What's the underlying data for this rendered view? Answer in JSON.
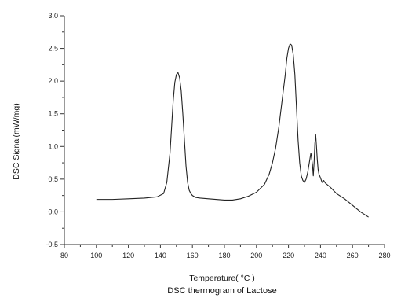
{
  "chart_data": {
    "type": "line",
    "title": "DSC thermogram of Lactose",
    "xlabel": "Temperature( °C )",
    "ylabel": "DSC Signal(mW/mg)",
    "xlim": [
      80,
      280
    ],
    "ylim": [
      -0.5,
      3.0
    ],
    "x_ticks": [
      80,
      100,
      120,
      140,
      160,
      180,
      200,
      220,
      240,
      260,
      280
    ],
    "y_ticks": [
      -0.5,
      0.0,
      0.5,
      1.0,
      1.5,
      2.0,
      2.5,
      3.0
    ],
    "x_tick_labels": [
      "80",
      "100",
      "120",
      "140",
      "160",
      "180",
      "200",
      "220",
      "240",
      "260",
      "280"
    ],
    "y_tick_labels": [
      "-0.5",
      "0.0",
      "0.5",
      "1.0",
      "1.5",
      "2.0",
      "2.5",
      "3.0"
    ],
    "grid": false,
    "line_color": "#222222",
    "series": [
      {
        "x": [
          100,
          110,
          120,
          130,
          138,
          142,
          144,
          146,
          147,
          148,
          149,
          150,
          151,
          152,
          153,
          154,
          155,
          156,
          157,
          158,
          159,
          160,
          162,
          165,
          170,
          180,
          185,
          190,
          195,
          200,
          205,
          208,
          210,
          212,
          214,
          216,
          218,
          219,
          220,
          221,
          222,
          223,
          224,
          225,
          226,
          227,
          228,
          229,
          230,
          231,
          232,
          233,
          234,
          235,
          235.5,
          236,
          236.5,
          237,
          237.5,
          238,
          238.5,
          239,
          240,
          241,
          242,
          243,
          244,
          245,
          246,
          248,
          250,
          255,
          260,
          265,
          270
        ],
        "y": [
          0.19,
          0.19,
          0.2,
          0.21,
          0.23,
          0.28,
          0.45,
          0.9,
          1.3,
          1.7,
          1.98,
          2.1,
          2.13,
          2.05,
          1.85,
          1.5,
          1.1,
          0.7,
          0.45,
          0.33,
          0.28,
          0.25,
          0.22,
          0.21,
          0.2,
          0.18,
          0.18,
          0.2,
          0.24,
          0.3,
          0.42,
          0.58,
          0.75,
          0.98,
          1.3,
          1.7,
          2.1,
          2.35,
          2.5,
          2.57,
          2.55,
          2.4,
          2.1,
          1.6,
          1.1,
          0.75,
          0.55,
          0.48,
          0.45,
          0.5,
          0.6,
          0.75,
          0.9,
          0.72,
          0.55,
          0.75,
          1.05,
          1.18,
          1.0,
          0.8,
          0.65,
          0.58,
          0.52,
          0.45,
          0.48,
          0.44,
          0.42,
          0.4,
          0.38,
          0.33,
          0.28,
          0.2,
          0.1,
          0.0,
          -0.08
        ]
      }
    ]
  }
}
